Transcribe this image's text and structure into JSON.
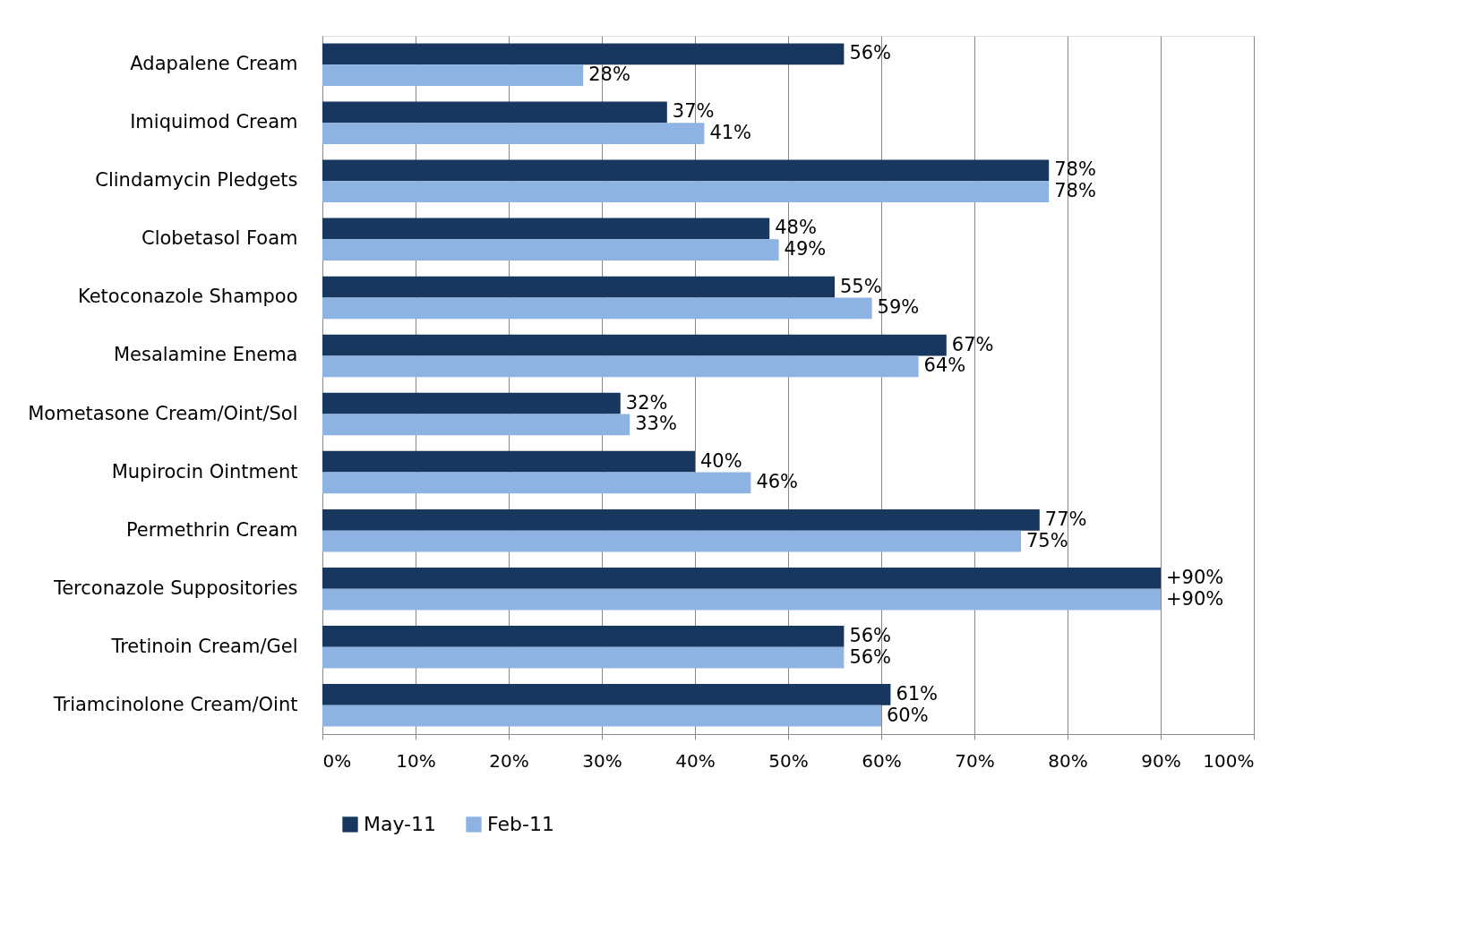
{
  "chart_data": {
    "type": "bar",
    "orientation": "horizontal",
    "categories": [
      "Adapalene Cream",
      "Imiquimod Cream",
      "Clindamycin Pledgets",
      "Clobetasol Foam",
      "Ketoconazole Shampoo",
      "Mesalamine Enema",
      "Mometasone Cream/Oint/Sol",
      "Mupirocin Ointment",
      "Permethrin Cream",
      "Terconazole Suppositories",
      "Tretinoin Cream/Gel",
      "Triamcinolone Cream/Oint"
    ],
    "series": [
      {
        "name": "May-11",
        "color": "#17375e",
        "values": [
          56,
          37,
          78,
          48,
          55,
          67,
          32,
          40,
          77,
          90,
          56,
          61
        ],
        "value_labels": [
          "56%",
          "37%",
          "78%",
          "48%",
          "55%",
          "67%",
          "32%",
          "40%",
          "77%",
          "+90%",
          "56%",
          "61%"
        ]
      },
      {
        "name": "Feb-11",
        "color": "#8db3e2",
        "values": [
          28,
          41,
          78,
          49,
          59,
          64,
          33,
          46,
          75,
          90,
          56,
          60
        ],
        "value_labels": [
          "28%",
          "41%",
          "78%",
          "49%",
          "59%",
          "64%",
          "33%",
          "46%",
          "75%",
          "+90%",
          "56%",
          "60%"
        ]
      }
    ],
    "xlim": [
      0,
      100
    ],
    "xticks": [
      {
        "value": 0,
        "label": "0%"
      },
      {
        "value": 10,
        "label": "10%"
      },
      {
        "value": 20,
        "label": "20%"
      },
      {
        "value": 30,
        "label": "30%"
      },
      {
        "value": 40,
        "label": "40%"
      },
      {
        "value": 50,
        "label": "50%"
      },
      {
        "value": 60,
        "label": "60%"
      },
      {
        "value": 70,
        "label": "70%"
      },
      {
        "value": 80,
        "label": "80%"
      },
      {
        "value": 90,
        "label": "90%"
      },
      {
        "value": 100,
        "label": "100%"
      }
    ],
    "grid": "x",
    "legend": "bottom"
  }
}
